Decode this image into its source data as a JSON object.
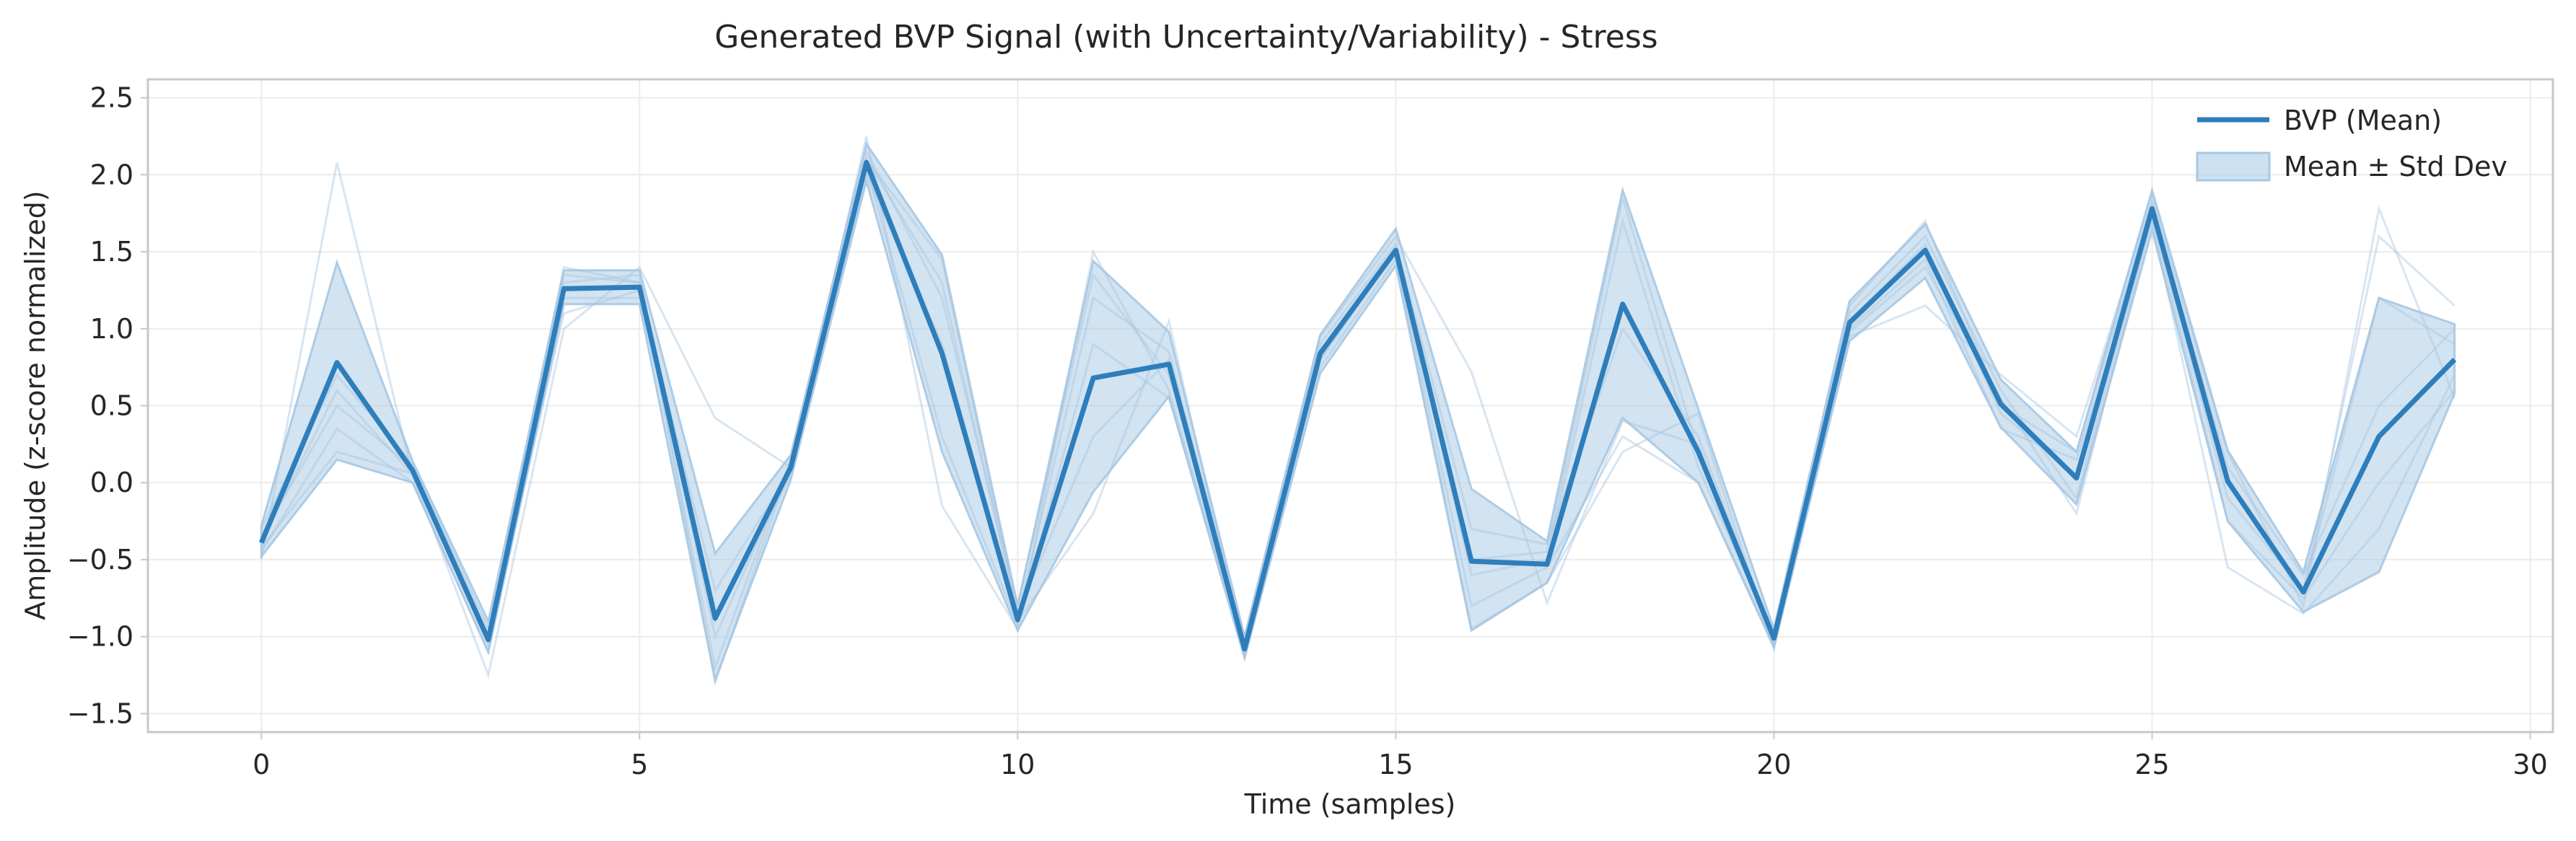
{
  "chart_data": {
    "type": "line",
    "title": "Generated BVP Signal (with Uncertainty/Variability) - Stress",
    "xlabel": "Time (samples)",
    "ylabel": "Amplitude (z-score normalized)",
    "xlim": [
      -1.5,
      30.3
    ],
    "ylim": [
      -1.62,
      2.62
    ],
    "xticks": [
      0,
      5,
      10,
      15,
      20,
      25,
      30
    ],
    "yticks": [
      -1.5,
      -1.0,
      -0.5,
      0.0,
      0.5,
      1.0,
      1.5,
      2.0,
      2.5
    ],
    "grid": true,
    "legend_position": "top-right",
    "colors": {
      "mean": "#2e7ebc",
      "band": "#a6c8e3",
      "sample": "#a9c6e0"
    },
    "x": [
      0,
      1,
      2,
      3,
      4,
      5,
      6,
      7,
      8,
      9,
      10,
      11,
      12,
      13,
      14,
      15,
      16,
      17,
      18,
      19,
      20,
      21,
      22,
      23,
      24,
      25,
      26,
      27,
      28,
      29
    ],
    "series": [
      {
        "name": "BVP (Mean)",
        "role": "mean",
        "values": [
          -0.39,
          0.78,
          0.08,
          -1.02,
          1.26,
          1.27,
          -0.88,
          0.1,
          2.08,
          0.84,
          -0.89,
          0.68,
          0.77,
          -1.08,
          0.84,
          1.51,
          -0.51,
          -0.53,
          1.16,
          0.2,
          -1.01,
          1.04,
          1.51,
          0.51,
          0.03,
          1.78,
          0.01,
          -0.71,
          0.3,
          0.8
        ]
      },
      {
        "name": "Mean ± Std Dev",
        "role": "band",
        "upper": [
          -0.28,
          1.43,
          0.14,
          -0.9,
          1.38,
          1.38,
          -0.46,
          0.18,
          2.2,
          1.48,
          -0.8,
          1.44,
          0.98,
          -1.0,
          0.96,
          1.65,
          -0.04,
          -0.38,
          1.9,
          0.48,
          -0.95,
          1.18,
          1.68,
          0.67,
          0.2,
          1.9,
          0.21,
          -0.58,
          1.2,
          1.03
        ],
        "lower": [
          -0.48,
          0.15,
          0.0,
          -1.1,
          1.16,
          1.16,
          -1.28,
          0.02,
          1.96,
          0.2,
          -0.96,
          -0.06,
          0.56,
          -1.14,
          0.71,
          1.41,
          -0.96,
          -0.65,
          0.42,
          0.0,
          -1.07,
          0.92,
          1.33,
          0.36,
          -0.14,
          1.64,
          -0.25,
          -0.84,
          -0.58,
          0.58
        ]
      },
      {
        "role": "sample",
        "values": [
          -0.5,
          2.08,
          0.05,
          -1.25,
          1.0,
          1.4,
          0.42,
          0.1,
          2.25,
          -0.15,
          -0.95,
          1.5,
          0.6,
          -1.1,
          0.95,
          1.6,
          0.72,
          -0.78,
          0.4,
          0.25,
          -1.05,
          0.95,
          1.15,
          0.7,
          0.3,
          1.85,
          0.2,
          -0.8,
          1.78,
          0.55
        ]
      },
      {
        "role": "sample",
        "values": [
          -0.35,
          0.5,
          0.1,
          -1.0,
          1.35,
          1.3,
          -1.2,
          0.15,
          2.1,
          1.45,
          -0.85,
          0.3,
          0.8,
          -1.0,
          0.8,
          1.5,
          -0.6,
          -0.5,
          1.7,
          0.1,
          -1.0,
          1.1,
          1.6,
          0.6,
          -0.1,
          1.75,
          -0.1,
          -0.7,
          1.6,
          1.15
        ]
      },
      {
        "role": "sample",
        "values": [
          -0.45,
          0.35,
          0.0,
          -1.1,
          1.2,
          1.2,
          -0.9,
          0.05,
          2.0,
          0.9,
          -0.9,
          -0.2,
          1.05,
          -1.12,
          0.75,
          1.45,
          -0.95,
          -0.65,
          0.2,
          0.45,
          -1.08,
          1.0,
          1.45,
          0.35,
          0.15,
          1.7,
          -0.55,
          -0.85,
          -0.3,
          0.7
        ]
      },
      {
        "role": "sample",
        "values": [
          -0.3,
          0.7,
          0.12,
          -0.95,
          1.3,
          1.35,
          -1.3,
          0.12,
          2.15,
          1.2,
          -0.8,
          1.35,
          0.7,
          -1.05,
          0.9,
          1.55,
          -0.3,
          -0.4,
          1.0,
          0.3,
          -1.02,
          1.15,
          1.7,
          0.5,
          0.2,
          1.8,
          0.1,
          -0.6,
          0.5,
          1.0
        ]
      },
      {
        "role": "sample",
        "values": [
          -0.42,
          0.2,
          0.06,
          -1.05,
          1.1,
          1.25,
          -0.7,
          0.08,
          2.05,
          0.3,
          -0.92,
          0.9,
          0.55,
          -1.1,
          0.85,
          1.48,
          -0.8,
          -0.55,
          0.3,
          0.0,
          -1.05,
          0.98,
          1.4,
          0.55,
          -0.2,
          1.72,
          -0.25,
          -0.75,
          0.0,
          0.6
        ]
      },
      {
        "role": "sample",
        "values": [
          -0.38,
          0.6,
          0.05,
          -1.0,
          1.4,
          1.3,
          -1.0,
          0.1,
          2.1,
          1.3,
          -0.88,
          1.2,
          0.85,
          -1.07,
          0.8,
          1.52,
          -0.5,
          -0.45,
          1.85,
          0.2,
          -1.0,
          1.05,
          1.55,
          0.45,
          0.05,
          1.78,
          0.0,
          -0.7,
          1.2,
          0.9
        ]
      }
    ]
  }
}
